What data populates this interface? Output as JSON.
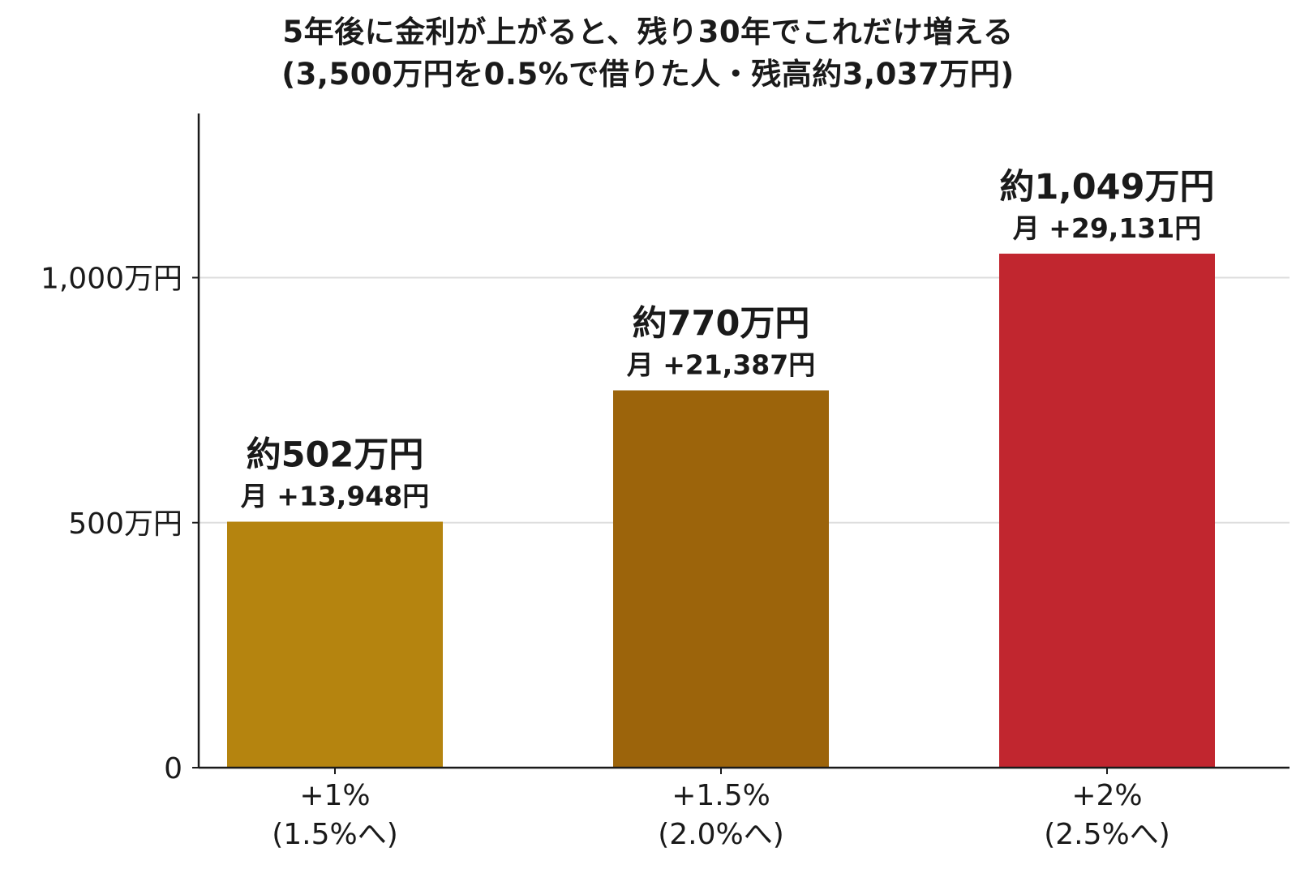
{
  "chart_data": {
    "type": "bar",
    "title": "5年後に金利が上がると、残り30年でこれだけ増える",
    "subtitle": "(3,500万円を0.5%で借りた人・残高約3,037万円)",
    "xlabel": "",
    "ylabel": "",
    "categories": [
      "+1%\n(1.5%へ)",
      "+1.5%\n(2.0%へ)",
      "+2%\n(2.5%へ)"
    ],
    "values": [
      502,
      770,
      1049
    ],
    "value_labels": [
      "約502万円",
      "約770万円",
      "約1,049万円"
    ],
    "monthly_labels": [
      "月 +13,948円",
      "月 +21,387円",
      "月 +29,131円"
    ],
    "colors": [
      "#b5840f",
      "#9c640b",
      "#c1262f"
    ],
    "yticks": [
      0,
      500,
      1000
    ],
    "ytick_labels": [
      "0",
      "500万円",
      "1,000万円"
    ],
    "ylim": [
      0,
      1335
    ],
    "grid": true,
    "legend": "none"
  }
}
